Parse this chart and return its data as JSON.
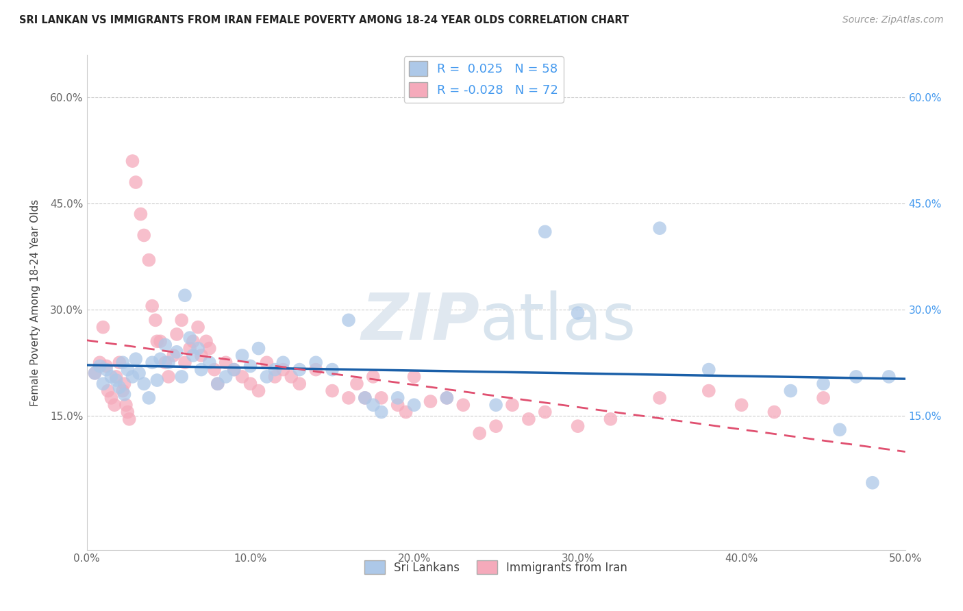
{
  "title": "SRI LANKAN VS IMMIGRANTS FROM IRAN FEMALE POVERTY AMONG 18-24 YEAR OLDS CORRELATION CHART",
  "source": "Source: ZipAtlas.com",
  "ylabel": "Female Poverty Among 18-24 Year Olds",
  "xlim": [
    0.0,
    0.5
  ],
  "ylim": [
    -0.04,
    0.66
  ],
  "xticks": [
    0.0,
    0.1,
    0.2,
    0.3,
    0.4,
    0.5
  ],
  "xticklabels": [
    "0.0%",
    "10.0%",
    "20.0%",
    "30.0%",
    "40.0%",
    "50.0%"
  ],
  "yticks": [
    0.15,
    0.3,
    0.45,
    0.6
  ],
  "yticklabels": [
    "15.0%",
    "30.0%",
    "45.0%",
    "60.0%"
  ],
  "legend1_label": "R =  0.025   N = 58",
  "legend2_label": "R = -0.028   N = 72",
  "bottom_label1": "Sri Lankans",
  "bottom_label2": "Immigrants from Iran",
  "blue_color": "#adc8e8",
  "pink_color": "#f5aabb",
  "blue_line_color": "#1a5fa8",
  "pink_line_color": "#e05070",
  "right_tick_color": "#4499ee",
  "sri_lankan_x": [
    0.005,
    0.008,
    0.01,
    0.012,
    0.015,
    0.018,
    0.02,
    0.022,
    0.023,
    0.025,
    0.028,
    0.03,
    0.032,
    0.035,
    0.038,
    0.04,
    0.043,
    0.045,
    0.048,
    0.05,
    0.055,
    0.058,
    0.06,
    0.063,
    0.065,
    0.068,
    0.07,
    0.075,
    0.08,
    0.085,
    0.09,
    0.095,
    0.1,
    0.105,
    0.11,
    0.115,
    0.12,
    0.13,
    0.14,
    0.15,
    0.16,
    0.17,
    0.175,
    0.18,
    0.19,
    0.2,
    0.22,
    0.25,
    0.28,
    0.3,
    0.35,
    0.38,
    0.43,
    0.45,
    0.46,
    0.47,
    0.48,
    0.49
  ],
  "sri_lankan_y": [
    0.21,
    0.22,
    0.195,
    0.215,
    0.205,
    0.2,
    0.19,
    0.225,
    0.18,
    0.215,
    0.205,
    0.23,
    0.21,
    0.195,
    0.175,
    0.225,
    0.2,
    0.23,
    0.25,
    0.225,
    0.24,
    0.205,
    0.32,
    0.26,
    0.235,
    0.245,
    0.215,
    0.225,
    0.195,
    0.205,
    0.215,
    0.235,
    0.22,
    0.245,
    0.205,
    0.215,
    0.225,
    0.215,
    0.225,
    0.215,
    0.285,
    0.175,
    0.165,
    0.155,
    0.175,
    0.165,
    0.175,
    0.165,
    0.41,
    0.295,
    0.415,
    0.215,
    0.185,
    0.195,
    0.13,
    0.205,
    0.055,
    0.205
  ],
  "iran_x": [
    0.005,
    0.008,
    0.01,
    0.012,
    0.013,
    0.015,
    0.017,
    0.018,
    0.02,
    0.022,
    0.023,
    0.024,
    0.025,
    0.026,
    0.028,
    0.03,
    0.033,
    0.035,
    0.038,
    0.04,
    0.042,
    0.043,
    0.045,
    0.048,
    0.05,
    0.053,
    0.055,
    0.058,
    0.06,
    0.063,
    0.065,
    0.068,
    0.07,
    0.073,
    0.075,
    0.078,
    0.08,
    0.085,
    0.09,
    0.095,
    0.1,
    0.105,
    0.11,
    0.115,
    0.12,
    0.125,
    0.13,
    0.14,
    0.15,
    0.16,
    0.165,
    0.17,
    0.175,
    0.18,
    0.19,
    0.195,
    0.2,
    0.21,
    0.22,
    0.23,
    0.24,
    0.25,
    0.26,
    0.27,
    0.28,
    0.3,
    0.32,
    0.35,
    0.38,
    0.4,
    0.42,
    0.45
  ],
  "iran_y": [
    0.21,
    0.225,
    0.275,
    0.22,
    0.185,
    0.175,
    0.165,
    0.205,
    0.225,
    0.185,
    0.195,
    0.165,
    0.155,
    0.145,
    0.51,
    0.48,
    0.435,
    0.405,
    0.37,
    0.305,
    0.285,
    0.255,
    0.255,
    0.225,
    0.205,
    0.235,
    0.265,
    0.285,
    0.225,
    0.245,
    0.255,
    0.275,
    0.235,
    0.255,
    0.245,
    0.215,
    0.195,
    0.225,
    0.215,
    0.205,
    0.195,
    0.185,
    0.225,
    0.205,
    0.215,
    0.205,
    0.195,
    0.215,
    0.185,
    0.175,
    0.195,
    0.175,
    0.205,
    0.175,
    0.165,
    0.155,
    0.205,
    0.17,
    0.175,
    0.165,
    0.125,
    0.135,
    0.165,
    0.145,
    0.155,
    0.135,
    0.145,
    0.175,
    0.185,
    0.165,
    0.155,
    0.175
  ]
}
